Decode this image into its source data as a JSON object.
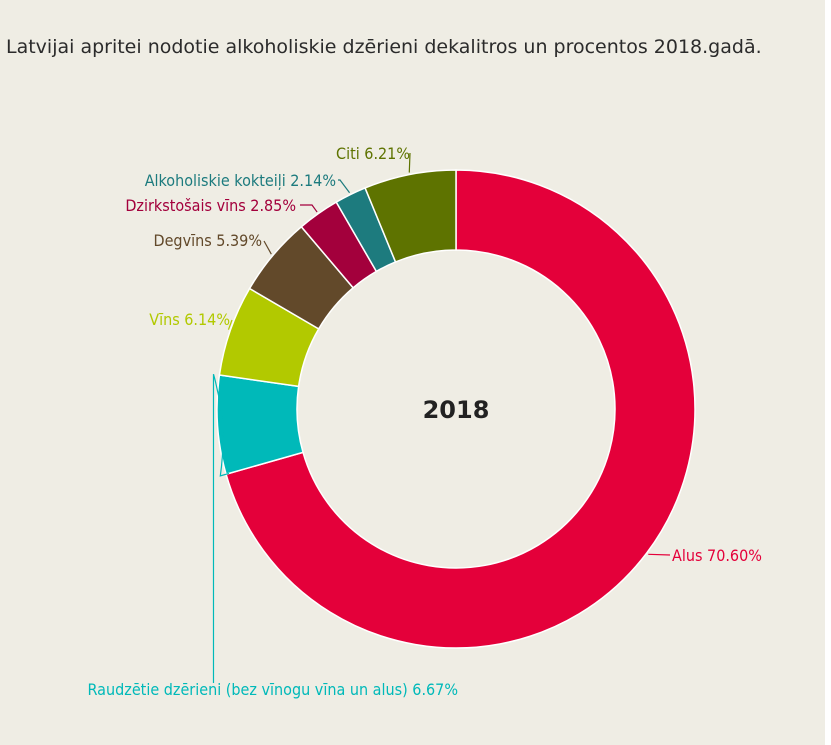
{
  "title": "Latvijai apritei nodotie alkoholiskie dzērieni dekalitros un procentos 2018.gadā.",
  "chart_data": {
    "type": "pie",
    "donut": true,
    "center_label": "2018",
    "slices": [
      {
        "name": "Alus",
        "value": 70.6,
        "label": "Alus 70.60%",
        "color": "#e4003a"
      },
      {
        "name": "Raudzētie dzērieni (bez vīnogu vīna un alus)",
        "value": 6.67,
        "label": "Raudzētie dzērieni (bez vīnogu vīna un alus) 6.67%",
        "color": "#00b9b9"
      },
      {
        "name": "Vīns",
        "value": 6.14,
        "label": "Vīns 6.14%",
        "color": "#b2c900"
      },
      {
        "name": "Degvīns",
        "value": 5.39,
        "label": "Degvīns 5.39%",
        "color": "#62492a"
      },
      {
        "name": "Dzirkstošais vīns",
        "value": 2.85,
        "label": "Dzirkstošais vīns 2.85%",
        "color": "#a3003c"
      },
      {
        "name": "Alkoholiskie kokteiļi",
        "value": 2.14,
        "label": "Alkoholiskie kokteiļi 2.14%",
        "color": "#1d7b7e"
      },
      {
        "name": "Citi",
        "value": 6.21,
        "label": "Citi 6.21%",
        "color": "#5e7300"
      }
    ],
    "legend": "none"
  }
}
